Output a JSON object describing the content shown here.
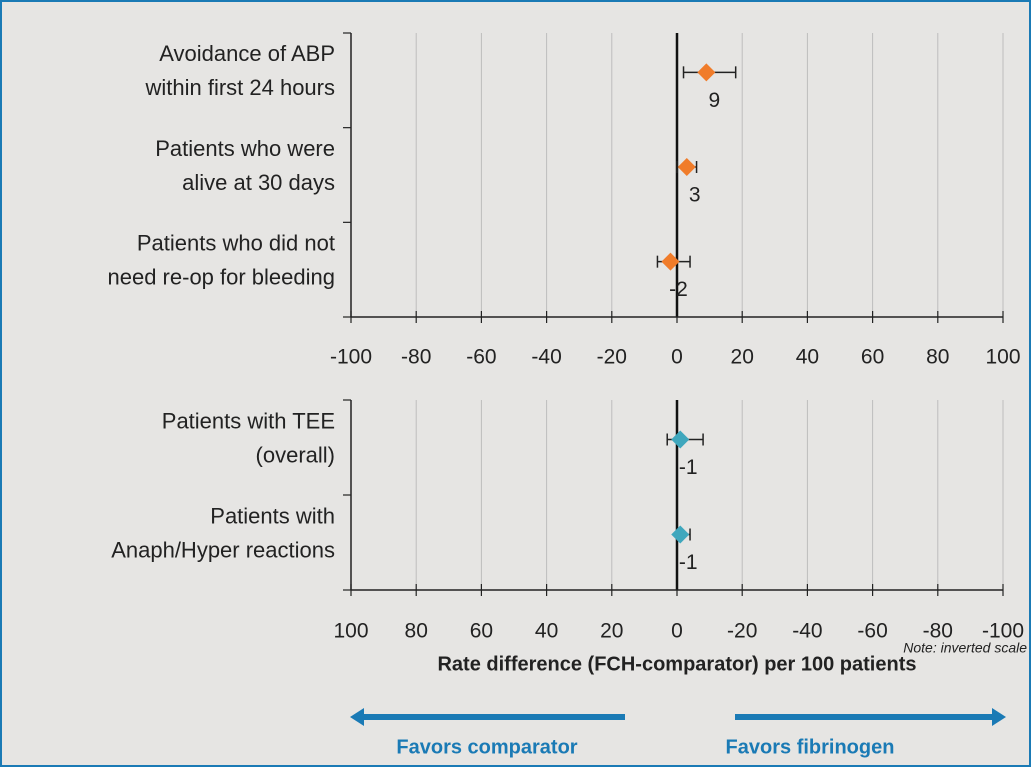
{
  "chart_data": [
    {
      "type": "forest",
      "color": "#f07c2a",
      "categories": [
        [
          "Avoidance of ABP",
          "within first 24 hours"
        ],
        [
          "Patients who were",
          "alive at 30 days"
        ],
        [
          "Patients who did not",
          "need re-op for bleeding"
        ]
      ],
      "values": [
        9,
        3,
        -2
      ],
      "ci_low": [
        2,
        0,
        -6
      ],
      "ci_high": [
        18,
        6,
        4
      ],
      "xlim": [
        -100,
        100
      ],
      "xticks": [
        -100,
        -80,
        -60,
        -40,
        -20,
        0,
        20,
        40,
        60,
        80,
        100
      ],
      "grid": true
    },
    {
      "type": "forest",
      "color": "#3fa7bd",
      "categories": [
        [
          "Patients with TEE",
          "(overall)"
        ],
        [
          "Patients with",
          "Anaph/Hyper reactions"
        ]
      ],
      "values": [
        -1,
        -1
      ],
      "ci_low": [
        -8,
        -4
      ],
      "ci_high": [
        3,
        0
      ],
      "xlim": [
        100,
        -100
      ],
      "xticks": [
        100,
        80,
        60,
        40,
        20,
        0,
        -20,
        -40,
        -60,
        -80,
        -100
      ],
      "grid": true,
      "note": "Note: inverted scale",
      "xlabel": "Rate difference (FCH-comparator) per 100 patients",
      "annotations": [
        "Favors comparator",
        "Favors fibrinogen"
      ]
    }
  ]
}
